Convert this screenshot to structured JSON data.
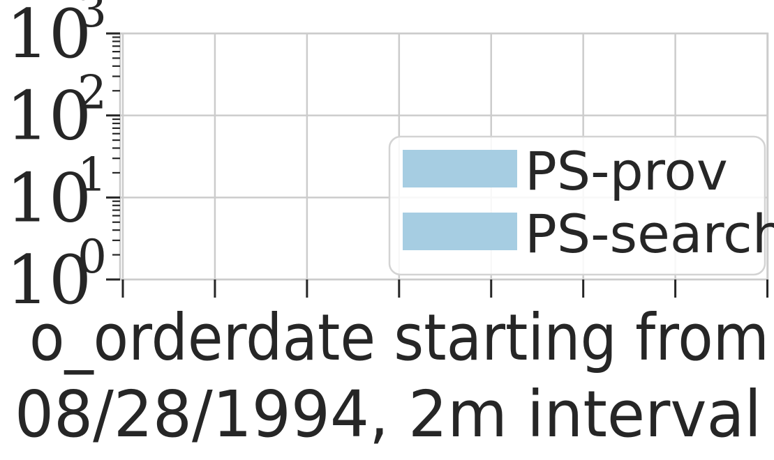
{
  "chart_data": {
    "type": "bar",
    "title": "",
    "xlabel_line1": "o_orderdate starting from",
    "xlabel_line2": "08/28/1994, 2m interval",
    "ylabel": "",
    "y_scale": "log",
    "ylim": [
      1,
      1000
    ],
    "y_ticks": [
      {
        "value": 1,
        "base": "10",
        "exp": "0"
      },
      {
        "value": 10,
        "base": "10",
        "exp": "1"
      },
      {
        "value": 100,
        "base": "10",
        "exp": "2"
      },
      {
        "value": 1000,
        "base": "10",
        "exp": "3"
      }
    ],
    "x_tick_count": 8,
    "grid": true,
    "legend_position": "lower-right",
    "series": [
      {
        "name": "PS-prov",
        "color": "#a6cde2",
        "values": []
      },
      {
        "name": "PS-search",
        "color": "#a6cde2",
        "values": []
      }
    ]
  }
}
